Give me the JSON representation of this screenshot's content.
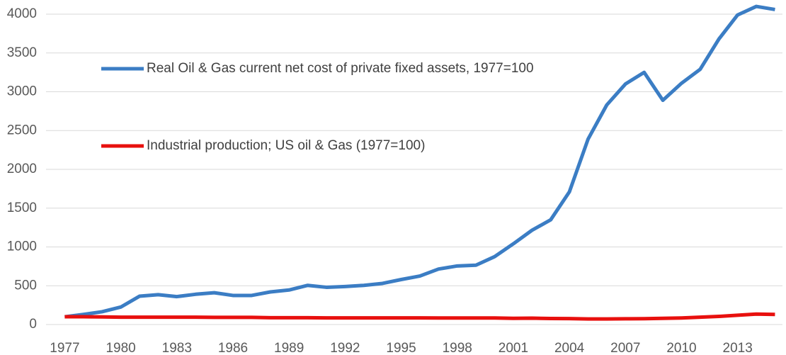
{
  "chart_data": {
    "type": "line",
    "x": [
      1977,
      1978,
      1979,
      1980,
      1981,
      1982,
      1983,
      1984,
      1985,
      1986,
      1987,
      1988,
      1989,
      1990,
      1991,
      1992,
      1993,
      1994,
      1995,
      1996,
      1997,
      1998,
      1999,
      2000,
      2001,
      2002,
      2003,
      2004,
      2005,
      2006,
      2007,
      2008,
      2009,
      2010,
      2011,
      2012,
      2013,
      2014,
      2015
    ],
    "series": [
      {
        "name": "Real Oil & Gas current net cost of private fixed assets, 1977=100",
        "color": "#3b7dc4",
        "values": [
          100,
          130,
          165,
          225,
          365,
          385,
          360,
          390,
          410,
          375,
          375,
          420,
          445,
          505,
          480,
          490,
          505,
          530,
          580,
          625,
          715,
          755,
          765,
          875,
          1040,
          1215,
          1350,
          1710,
          2390,
          2830,
          3100,
          3250,
          2890,
          3110,
          3290,
          3680,
          3990,
          4100,
          4060
        ]
      },
      {
        "name": "Industrial production; US oil & Gas (1977=100)",
        "color": "#e8100e",
        "values": [
          100,
          100,
          98,
          95,
          95,
          95,
          95,
          95,
          92,
          92,
          92,
          88,
          88,
          88,
          86,
          86,
          86,
          86,
          86,
          86,
          85,
          85,
          84,
          84,
          80,
          82,
          78,
          76,
          72,
          72,
          74,
          75,
          80,
          85,
          95,
          105,
          120,
          135,
          130
        ]
      }
    ],
    "xlim": [
      1976,
      2015.4
    ],
    "xticks": [
      1977,
      1980,
      1983,
      1986,
      1989,
      1992,
      1995,
      1998,
      2001,
      2004,
      2007,
      2010,
      2013
    ],
    "ylim": [
      0,
      4000
    ],
    "yticks": [
      0,
      500,
      1000,
      1500,
      2000,
      2500,
      3000,
      3500,
      4000
    ],
    "grid": true
  }
}
